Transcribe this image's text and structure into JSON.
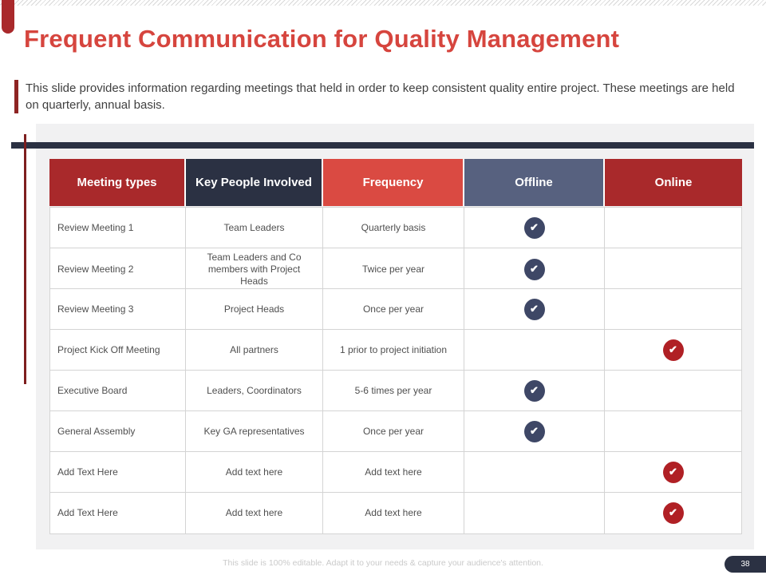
{
  "slide": {
    "title": "Frequent Communication for Quality Management",
    "description": "This slide provides information regarding meetings that held in order to keep consistent quality entire project. These meetings are held on quarterly, annual basis.",
    "footer_note": "This slide is 100% editable. Adapt it to your needs & capture your audience's attention.",
    "page_number": "38"
  },
  "colors": {
    "title_red": "#d6453e",
    "header_dark_red": "#a9292b",
    "header_navy": "#2b3143",
    "header_bright_red": "#da4a42",
    "header_slate": "#57617f",
    "accent_maroon": "#8e2423",
    "divider_navy": "#2b3143",
    "check_offline": "#3e4766",
    "check_online": "#b02025",
    "panel_gray": "#f1f1f2"
  },
  "table": {
    "headers": [
      {
        "label": "Meeting types",
        "color": "#a9292b"
      },
      {
        "label": "Key People Involved",
        "color": "#2b3143"
      },
      {
        "label": "Frequency",
        "color": "#da4a42"
      },
      {
        "label": "Offline",
        "color": "#57617f"
      },
      {
        "label": "Online",
        "color": "#a9292b"
      }
    ],
    "rows": [
      {
        "meeting": "Review Meeting 1",
        "people": "Team Leaders",
        "frequency": "Quarterly basis",
        "offline": true,
        "online": false,
        "placeholder": false
      },
      {
        "meeting": "Review Meeting 2",
        "people": "Team Leaders and Co members with Project Heads",
        "frequency": "Twice per year",
        "offline": true,
        "online": false,
        "placeholder": false
      },
      {
        "meeting": "Review Meeting 3",
        "people": "Project Heads",
        "frequency": "Once per year",
        "offline": true,
        "online": false,
        "placeholder": false
      },
      {
        "meeting": "Project Kick Off Meeting",
        "people": "All partners",
        "frequency": "1 prior to project initiation",
        "offline": false,
        "online": true,
        "placeholder": false
      },
      {
        "meeting": "Executive Board",
        "people": "Leaders, Coordinators",
        "frequency": "5-6 times per year",
        "offline": true,
        "online": false,
        "placeholder": false
      },
      {
        "meeting": "General Assembly",
        "people": "Key GA representatives",
        "frequency": "Once per year",
        "offline": true,
        "online": false,
        "placeholder": false
      },
      {
        "meeting": "Add Text Here",
        "people": "Add text here",
        "frequency": "Add text here",
        "offline": false,
        "online": true,
        "placeholder": true
      },
      {
        "meeting": "Add Text Here",
        "people": "Add text here",
        "frequency": "Add text here",
        "offline": false,
        "online": true,
        "placeholder": true
      }
    ]
  }
}
